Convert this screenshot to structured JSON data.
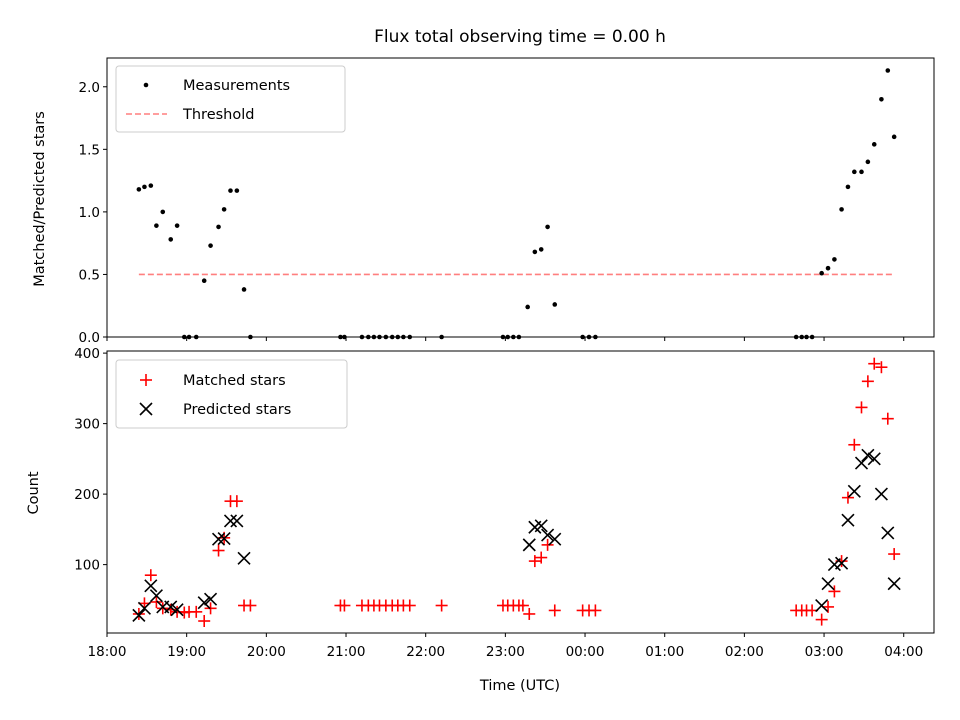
{
  "chart_data": [
    {
      "type": "scatter",
      "title": "Flux total observing time = 0.00 h",
      "xlabel": "",
      "ylabel": "Matched/Predicted stars",
      "ylim": [
        0,
        2.23
      ],
      "yticks": [
        0.0,
        0.5,
        1.0,
        1.5,
        2.0
      ],
      "ytick_labels": [
        "0.0",
        "0.5",
        "1.0",
        "1.5",
        "2.0"
      ],
      "xlim": [
        18.0,
        28.38
      ],
      "legend": "top-left",
      "series": [
        {
          "name": "Measurements",
          "marker": "dot",
          "color": "#000000",
          "x": [
            18.4,
            18.47,
            18.55,
            18.62,
            18.7,
            18.8,
            18.88,
            18.97,
            19.03,
            19.12,
            19.22,
            19.3,
            19.4,
            19.47,
            19.55,
            19.63,
            19.72,
            19.8,
            20.93,
            20.98,
            21.2,
            21.28,
            21.35,
            21.42,
            21.5,
            21.58,
            21.65,
            21.72,
            21.8,
            22.2,
            22.97,
            23.03,
            23.1,
            23.17,
            23.28,
            23.37,
            23.45,
            23.53,
            23.62,
            23.97,
            24.05,
            24.13,
            26.65,
            26.72,
            26.78,
            26.85,
            26.97,
            27.05,
            27.13,
            27.22,
            27.3,
            27.38,
            27.47,
            27.55,
            27.63,
            27.72,
            27.8,
            27.88
          ],
          "y": [
            1.18,
            1.2,
            1.21,
            0.89,
            1.0,
            0.78,
            0.89,
            0.0,
            0.0,
            0.0,
            0.45,
            0.73,
            0.88,
            1.02,
            1.17,
            1.17,
            0.38,
            0.0,
            0.0,
            0.0,
            0.0,
            0.0,
            0.0,
            0.0,
            0.0,
            0.0,
            0.0,
            0.0,
            0.0,
            0.0,
            0.0,
            0.0,
            0.0,
            0.0,
            0.24,
            0.68,
            0.7,
            0.88,
            0.26,
            0.0,
            0.0,
            0.0,
            0.0,
            0.0,
            0.0,
            0.0,
            0.51,
            0.55,
            0.62,
            1.02,
            1.2,
            1.32,
            1.32,
            1.4,
            1.54,
            1.9,
            2.13,
            1.6
          ]
        },
        {
          "name": "Threshold",
          "marker": "dashed-line",
          "color": "#ff7f7f",
          "x": [
            18.4,
            27.88
          ],
          "y": [
            0.5,
            0.5
          ]
        }
      ]
    },
    {
      "type": "scatter",
      "title": "",
      "xlabel": "Time (UTC)",
      "ylabel": "Count",
      "ylim": [
        3,
        403
      ],
      "yticks": [
        100,
        200,
        300,
        400
      ],
      "ytick_labels": [
        "100",
        "200",
        "300",
        "400"
      ],
      "xlim": [
        18.0,
        28.38
      ],
      "xticks": [
        18,
        19,
        20,
        21,
        22,
        23,
        24,
        25,
        26,
        27,
        28
      ],
      "xtick_labels": [
        "18:00",
        "19:00",
        "20:00",
        "21:00",
        "22:00",
        "23:00",
        "00:00",
        "01:00",
        "02:00",
        "03:00",
        "04:00"
      ],
      "legend": "top-left",
      "series": [
        {
          "name": "Matched stars",
          "marker": "plus",
          "color": "#ff0000",
          "x": [
            18.4,
            18.47,
            18.55,
            18.62,
            18.7,
            18.8,
            18.88,
            18.97,
            19.03,
            19.12,
            19.22,
            19.3,
            19.4,
            19.47,
            19.55,
            19.63,
            19.72,
            19.8,
            20.93,
            20.98,
            21.2,
            21.28,
            21.35,
            21.42,
            21.5,
            21.58,
            21.65,
            21.72,
            21.8,
            22.2,
            22.97,
            23.03,
            23.1,
            23.17,
            23.22,
            23.3,
            23.37,
            23.45,
            23.53,
            23.62,
            23.97,
            24.05,
            24.13,
            26.65,
            26.72,
            26.78,
            26.85,
            26.97,
            27.05,
            27.13,
            27.22,
            27.3,
            27.38,
            27.47,
            27.55,
            27.63,
            27.72,
            27.8,
            27.88
          ],
          "y": [
            30,
            45,
            85,
            47,
            38,
            36,
            33,
            32,
            33,
            33,
            20,
            38,
            120,
            138,
            190,
            190,
            42,
            42,
            42,
            42,
            42,
            42,
            42,
            42,
            42,
            42,
            42,
            42,
            42,
            42,
            42,
            42,
            42,
            42,
            42,
            30,
            105,
            110,
            128,
            35,
            35,
            35,
            35,
            35,
            35,
            35,
            35,
            22,
            40,
            62,
            105,
            195,
            270,
            323,
            360,
            385,
            380,
            307,
            115
          ]
        },
        {
          "name": "Predicted stars",
          "marker": "x",
          "color": "#000000",
          "x": [
            18.4,
            18.47,
            18.55,
            18.62,
            18.7,
            18.8,
            18.88,
            19.22,
            19.3,
            19.4,
            19.47,
            19.55,
            19.63,
            19.72,
            23.3,
            23.37,
            23.45,
            23.53,
            23.62,
            26.97,
            27.05,
            27.13,
            27.22,
            27.3,
            27.38,
            27.47,
            27.55,
            27.63,
            27.72,
            27.8,
            27.88
          ],
          "y": [
            28,
            38,
            70,
            56,
            40,
            40,
            36,
            46,
            51,
            136,
            137,
            162,
            162,
            109,
            128,
            153,
            155,
            142,
            136,
            42,
            73,
            100,
            102,
            163,
            204,
            244,
            255,
            250,
            200,
            145,
            73
          ]
        }
      ]
    }
  ]
}
